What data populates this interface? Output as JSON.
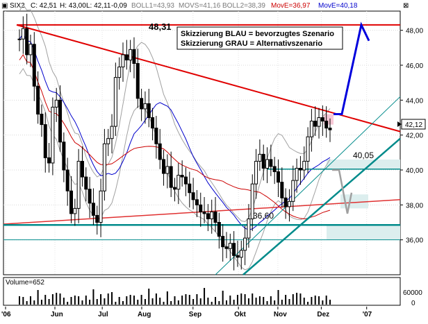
{
  "header": {
    "symbol": "SIX2",
    "close": "C: 42,51",
    "high": "H: 43,00",
    "low": "L: 42,11",
    "change": "-0,09",
    "boll1": "BOLL1=43,93",
    "movs": "MOVS=41,16",
    "boll2": "BOLL2=38,39",
    "move_red": "MovE=36,97",
    "move_blue": "MovE=40,18"
  },
  "legend": {
    "line1": "Skizzierung BLAU = bevorzugtes Szenario",
    "line2": "Skizzierung GRAU = Alternativszenario"
  },
  "annotations": {
    "resistance_level": "48,31",
    "level_4005": "40,05",
    "level_3660": "36,60"
  },
  "current_price_badge": "42,12",
  "volume_panel": {
    "label": "Volume=652",
    "tick_60000": "60000",
    "tick_0": "0"
  },
  "colors": {
    "price_bars": "#000000",
    "downtrend_line": "#e00000",
    "support_line": "#e03030",
    "horizontal_support": "#008b8b",
    "uptrend_line": "#008b8b",
    "bollinger": "#a0a0a0",
    "movs": "#0000cc",
    "move_red": "#cc0000",
    "scenario_blue": "#0000dd",
    "scenario_gray": "#a0a0a0",
    "badge_bg": "#ffffff",
    "target_zone": "#b0d8d8"
  },
  "chart_data": {
    "type": "candlestick",
    "title": "SIX2",
    "y_axis": {
      "ticks": [
        "48,00",
        "46,00",
        "44,00",
        "42,00",
        "40,00",
        "38,00",
        "36,00"
      ],
      "range": [
        34.0,
        49.1
      ]
    },
    "x_axis": {
      "labels": [
        "'06",
        "Jun",
        "Jul",
        "Aug",
        "Sep",
        "Okt",
        "Nov",
        "Dez",
        "'07"
      ]
    },
    "prices": [
      47.5,
      48.1,
      46.6,
      47.2,
      44.8,
      43.2,
      42.6,
      40.7,
      40.4,
      43.6,
      44.0,
      41.6,
      40.0,
      38.8,
      37.5,
      37.8,
      40.5,
      39.6,
      38.9,
      38.1,
      37.4,
      37.0,
      38.8,
      41.5,
      41.8,
      42.5,
      45.3,
      45.9,
      46.6,
      46.3,
      46.9,
      46.1,
      44.1,
      43.5,
      43.8,
      43.0,
      42.4,
      41.5,
      40.6,
      39.8,
      40.2,
      39.0,
      38.9,
      39.7,
      39.6,
      39.2,
      38.7,
      38.3,
      38.0,
      37.6,
      37.5,
      37.2,
      37.6,
      37.0,
      36.2,
      35.6,
      35.5,
      35.8,
      35.1,
      35.0,
      35.4,
      36.1,
      37.2,
      39.2,
      40.5,
      40.9,
      40.1,
      40.6,
      40.2,
      39.9,
      39.3,
      38.4,
      37.9,
      38.2,
      39.4,
      40.1,
      40.0,
      40.5,
      41.9,
      42.8,
      42.5,
      43.0,
      42.8,
      42.4,
      42.3
    ],
    "indicators": {
      "BOLL1": 43.93,
      "MOVS": 41.16,
      "BOLL2": 38.39,
      "MovE_red": 36.97,
      "MovE_blue": 40.18
    },
    "levels": [
      48.31,
      40.05,
      36.6
    ],
    "volume_ticks": [
      60000,
      0
    ]
  }
}
